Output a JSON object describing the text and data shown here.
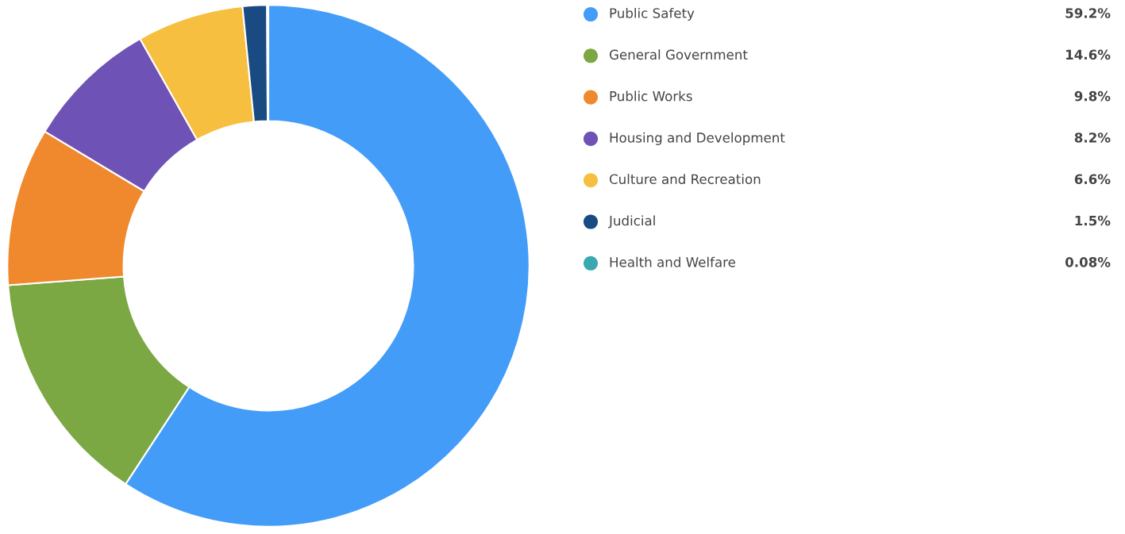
{
  "chart_data": {
    "type": "donut",
    "categories": [
      "Public Safety",
      "General Government",
      "Public Works",
      "Housing and Development",
      "Culture and Recreation",
      "Judicial",
      "Health and Welfare"
    ],
    "values": [
      59.2,
      14.6,
      9.8,
      8.2,
      6.6,
      1.5,
      0.08
    ],
    "colors": [
      "#439cf8",
      "#7ba843",
      "#f0892e",
      "#6e52b5",
      "#f6bf3f",
      "#1a4a82",
      "#3aa8b0"
    ],
    "value_labels": [
      "59.2%",
      "14.6%",
      "9.8%",
      "8.2%",
      "6.6%",
      "1.5%",
      "0.08%"
    ],
    "legend": "right"
  }
}
